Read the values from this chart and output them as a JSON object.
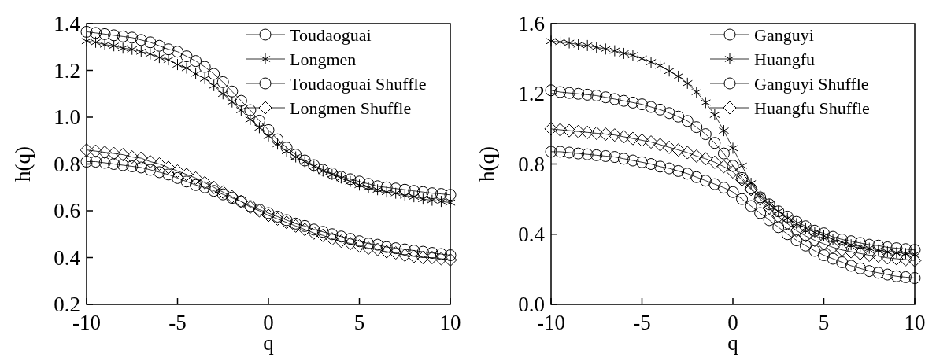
{
  "chart_data": [
    {
      "type": "line",
      "xlabel": "q",
      "ylabel": "h(q)",
      "xlim": [
        -10,
        10
      ],
      "xticks": [
        -10,
        -5,
        0,
        5,
        10
      ],
      "ylim": [
        0.2,
        1.4
      ],
      "yticks": [
        {
          "value": 0.2,
          "label": "0.2"
        },
        {
          "value": 0.4,
          "label": "0.4"
        },
        {
          "value": 0.6,
          "label": "0.6"
        },
        {
          "value": 0.8,
          "label": "0.8"
        },
        {
          "value": 1.0,
          "label": "1.0"
        },
        {
          "value": 1.2,
          "label": "1.2"
        },
        {
          "value": 1.4,
          "label": "1.4"
        }
      ],
      "legend": "top right",
      "grid": false,
      "line_style": "solid",
      "x": [
        -10,
        -9.5,
        -9,
        -8.5,
        -8,
        -7.5,
        -7,
        -6.5,
        -6,
        -5.5,
        -5,
        -4.5,
        -4,
        -3.5,
        -3,
        -2.5,
        -2,
        -1.5,
        -1,
        -0.5,
        0,
        0.5,
        1,
        1.5,
        2,
        2.5,
        3,
        3.5,
        4,
        4.5,
        5,
        5.5,
        6,
        6.5,
        7,
        7.5,
        8,
        8.5,
        9,
        9.5,
        10
      ],
      "series": [
        {
          "name": "Toudaoguai",
          "color": "#000000",
          "marker": "circle",
          "values": [
            1.365,
            1.36,
            1.355,
            1.35,
            1.345,
            1.34,
            1.33,
            1.32,
            1.305,
            1.29,
            1.28,
            1.26,
            1.24,
            1.215,
            1.185,
            1.15,
            1.11,
            1.07,
            1.03,
            0.985,
            0.945,
            0.905,
            0.87,
            0.84,
            0.815,
            0.795,
            0.775,
            0.76,
            0.745,
            0.735,
            0.725,
            0.715,
            0.705,
            0.7,
            0.695,
            0.69,
            0.685,
            0.68,
            0.675,
            0.672,
            0.668
          ]
        },
        {
          "name": "Longmen",
          "color": "#000000",
          "marker": "cross",
          "values": [
            1.325,
            1.32,
            1.31,
            1.305,
            1.295,
            1.29,
            1.28,
            1.27,
            1.255,
            1.245,
            1.225,
            1.21,
            1.185,
            1.165,
            1.135,
            1.1,
            1.065,
            1.03,
            0.99,
            0.955,
            0.92,
            0.885,
            0.855,
            0.83,
            0.81,
            0.79,
            0.77,
            0.755,
            0.74,
            0.725,
            0.71,
            0.7,
            0.69,
            0.68,
            0.675,
            0.665,
            0.66,
            0.65,
            0.645,
            0.64,
            0.635
          ]
        },
        {
          "name": "Toudaoguai Shuffle",
          "color": "#000000",
          "marker": "circle",
          "values": [
            0.81,
            0.81,
            0.805,
            0.8,
            0.795,
            0.79,
            0.785,
            0.775,
            0.765,
            0.755,
            0.74,
            0.725,
            0.71,
            0.7,
            0.685,
            0.67,
            0.655,
            0.64,
            0.62,
            0.605,
            0.59,
            0.575,
            0.56,
            0.545,
            0.535,
            0.52,
            0.51,
            0.5,
            0.49,
            0.48,
            0.47,
            0.46,
            0.455,
            0.445,
            0.44,
            0.435,
            0.43,
            0.425,
            0.42,
            0.415,
            0.41
          ]
        },
        {
          "name": "Longmen Shuffle",
          "color": "#000000",
          "marker": "diamond",
          "values": [
            0.86,
            0.855,
            0.85,
            0.845,
            0.84,
            0.83,
            0.825,
            0.81,
            0.8,
            0.785,
            0.77,
            0.755,
            0.74,
            0.72,
            0.7,
            0.68,
            0.66,
            0.64,
            0.615,
            0.6,
            0.58,
            0.565,
            0.55,
            0.535,
            0.52,
            0.505,
            0.495,
            0.48,
            0.47,
            0.46,
            0.45,
            0.44,
            0.435,
            0.425,
            0.42,
            0.41,
            0.405,
            0.4,
            0.4,
            0.395,
            0.39
          ]
        }
      ]
    },
    {
      "type": "line",
      "xlabel": "q",
      "ylabel": "h(q)",
      "xlim": [
        -10,
        10
      ],
      "xticks": [
        -10,
        -5,
        0,
        5,
        10
      ],
      "ylim": [
        0,
        1.6
      ],
      "yticks": [
        {
          "value": 0,
          "label": "0.0"
        },
        {
          "value": 0.4,
          "label": "0.4"
        },
        {
          "value": 0.8,
          "label": "0.8"
        },
        {
          "value": 1.2,
          "label": "1.2"
        },
        {
          "value": 1.6,
          "label": "1.6"
        }
      ],
      "legend": "top right",
      "grid": false,
      "line_style": "solid",
      "x": [
        -10,
        -9.5,
        -9,
        -8.5,
        -8,
        -7.5,
        -7,
        -6.5,
        -6,
        -5.5,
        -5,
        -4.5,
        -4,
        -3.5,
        -3,
        -2.5,
        -2,
        -1.5,
        -1,
        -0.5,
        0,
        0.5,
        1,
        1.5,
        2,
        2.5,
        3,
        3.5,
        4,
        4.5,
        5,
        5.5,
        6,
        6.5,
        7,
        7.5,
        8,
        8.5,
        9,
        9.5,
        10
      ],
      "series": [
        {
          "name": "Ganguyi",
          "color": "#000000",
          "marker": "circle",
          "values": [
            1.22,
            1.21,
            1.205,
            1.2,
            1.195,
            1.19,
            1.18,
            1.17,
            1.16,
            1.15,
            1.14,
            1.125,
            1.11,
            1.09,
            1.07,
            1.045,
            1.01,
            0.97,
            0.92,
            0.86,
            0.79,
            0.72,
            0.66,
            0.61,
            0.57,
            0.53,
            0.5,
            0.47,
            0.445,
            0.42,
            0.405,
            0.385,
            0.37,
            0.36,
            0.35,
            0.34,
            0.335,
            0.325,
            0.32,
            0.315,
            0.31
          ]
        },
        {
          "name": "Huangfu",
          "color": "#000000",
          "marker": "cross",
          "values": [
            1.5,
            1.495,
            1.49,
            1.48,
            1.475,
            1.465,
            1.455,
            1.445,
            1.43,
            1.42,
            1.4,
            1.38,
            1.36,
            1.33,
            1.3,
            1.26,
            1.21,
            1.15,
            1.08,
            0.99,
            0.89,
            0.79,
            0.69,
            0.62,
            0.57,
            0.53,
            0.49,
            0.46,
            0.435,
            0.41,
            0.39,
            0.37,
            0.355,
            0.34,
            0.33,
            0.32,
            0.31,
            0.3,
            0.295,
            0.29,
            0.285
          ]
        },
        {
          "name": "Ganguyi Shuffle",
          "color": "#000000",
          "marker": "circle",
          "values": [
            0.87,
            0.87,
            0.865,
            0.86,
            0.855,
            0.85,
            0.845,
            0.84,
            0.83,
            0.82,
            0.81,
            0.8,
            0.785,
            0.775,
            0.76,
            0.745,
            0.725,
            0.705,
            0.685,
            0.665,
            0.64,
            0.6,
            0.56,
            0.52,
            0.48,
            0.44,
            0.4,
            0.365,
            0.335,
            0.305,
            0.28,
            0.26,
            0.24,
            0.22,
            0.205,
            0.19,
            0.18,
            0.17,
            0.16,
            0.155,
            0.15
          ]
        },
        {
          "name": "Huangfu Shuffle",
          "color": "#000000",
          "marker": "diamond",
          "values": [
            1.0,
            0.995,
            0.99,
            0.985,
            0.98,
            0.975,
            0.97,
            0.965,
            0.955,
            0.945,
            0.935,
            0.925,
            0.91,
            0.895,
            0.88,
            0.865,
            0.845,
            0.83,
            0.81,
            0.785,
            0.755,
            0.71,
            0.655,
            0.6,
            0.55,
            0.5,
            0.46,
            0.42,
            0.39,
            0.365,
            0.345,
            0.325,
            0.31,
            0.3,
            0.29,
            0.28,
            0.275,
            0.265,
            0.26,
            0.255,
            0.25
          ]
        }
      ]
    }
  ]
}
